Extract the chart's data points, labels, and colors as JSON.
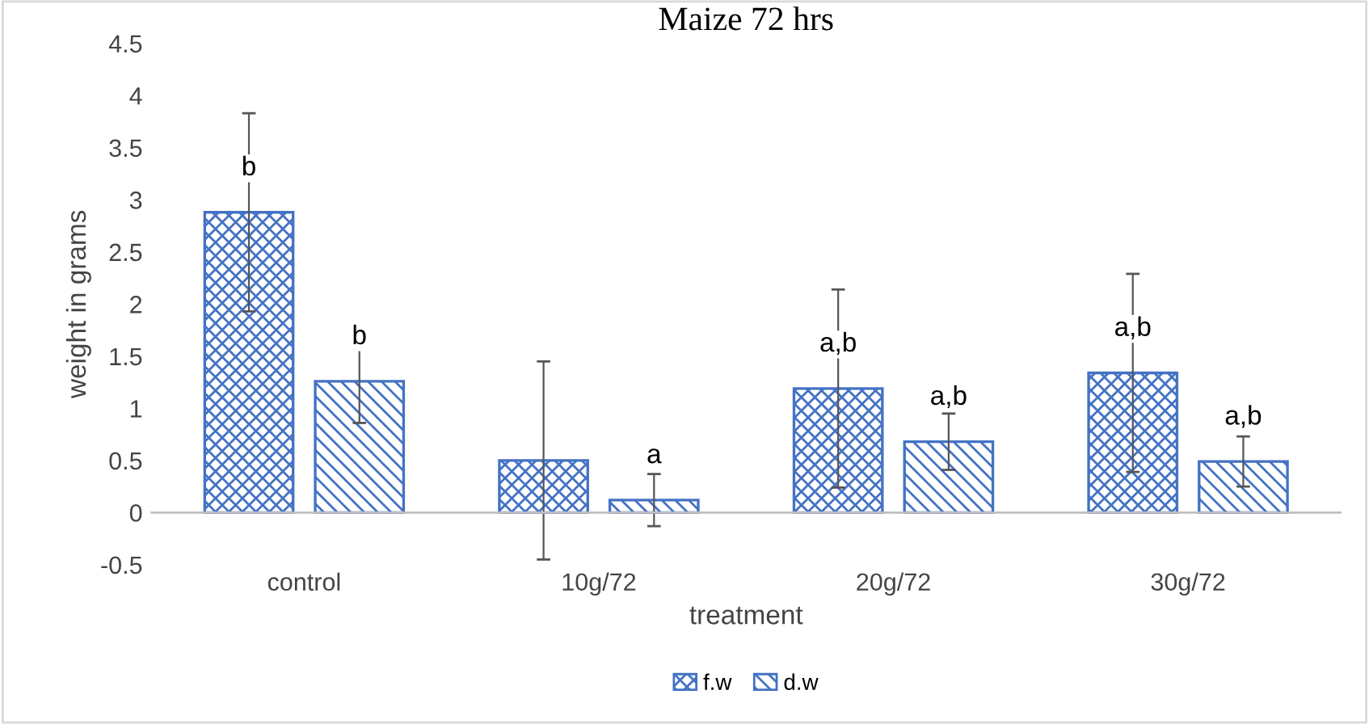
{
  "chart_data": {
    "type": "bar",
    "title": "Maize 72 hrs",
    "xlabel": "treatment",
    "ylabel": "weight in grams",
    "categories": [
      "control",
      "10g/72",
      "20g/72",
      "30g/72"
    ],
    "series": [
      {
        "name": "f.w",
        "color": "#4472c4",
        "values": [
          2.88,
          0.5,
          1.19,
          1.34
        ],
        "errors": [
          0.95,
          0.95,
          0.95,
          0.95
        ],
        "value_labels": [
          "b",
          null,
          "a,b",
          "a,b"
        ]
      },
      {
        "name": "d.w",
        "color": "#4472c4",
        "values": [
          1.26,
          0.12,
          0.68,
          0.49
        ],
        "errors": [
          0.4,
          0.25,
          0.27,
          0.24
        ],
        "value_labels": [
          "b",
          "a",
          "a,b",
          "a,b"
        ]
      }
    ],
    "ylim": [
      -0.5,
      4.5
    ],
    "yticks": [
      -0.5,
      0,
      0.5,
      1,
      1.5,
      2,
      2.5,
      3,
      3.5,
      4,
      4.5
    ],
    "grid": false,
    "legend": "bottom"
  }
}
